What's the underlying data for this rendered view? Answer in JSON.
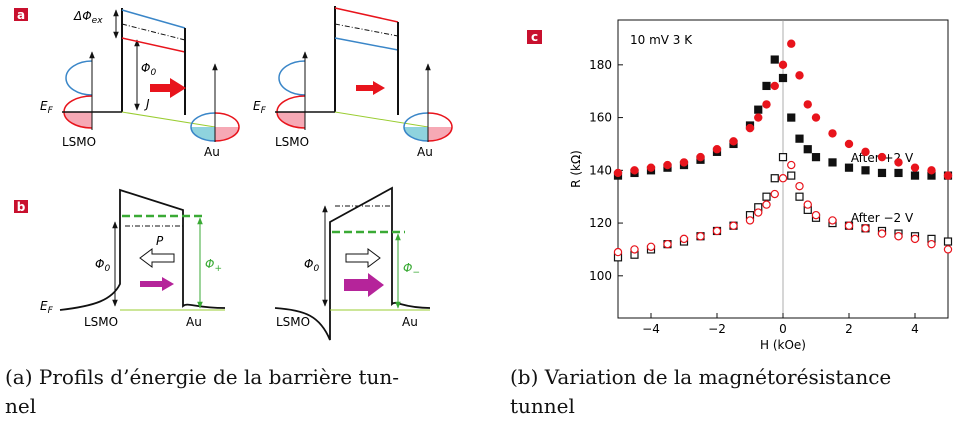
{
  "panel_a": {
    "label": "a",
    "delta_phi": {
      "main": "ΔΦ",
      "sub": "ex"
    },
    "phi0": {
      "main": "Φ",
      "sub": "0"
    },
    "current": "J",
    "fermi": {
      "main": "E",
      "sub": "F"
    },
    "left_electrode": "LSMO",
    "right_electrode": "Au"
  },
  "panel_b": {
    "label": "b",
    "polarization": "P",
    "phi0": {
      "main": "Φ",
      "sub": "0"
    },
    "phi_plus": {
      "main": "Φ",
      "sub": "+"
    },
    "phi_minus": {
      "main": "Φ",
      "sub": "−"
    },
    "fermi": {
      "main": "E",
      "sub": "F"
    },
    "left_electrode": "LSMO",
    "right_electrode": "Au"
  },
  "chart_data": {
    "type": "scatter",
    "panel_label": "c",
    "annotation": "10 mV 3 K",
    "labels": [
      "After +2 V",
      "After −2 V"
    ],
    "x_label": "H (kOe)",
    "y_label": "R (kΩ)",
    "xlim": [
      -5,
      5
    ],
    "ylim": [
      84,
      197
    ],
    "xticks": [
      {
        "value": -4,
        "label": "−4"
      },
      {
        "value": -2,
        "label": "−2"
      },
      0,
      2,
      4
    ],
    "yticks": [
      100,
      120,
      140,
      160,
      180
    ],
    "x": [
      -5,
      -4.5,
      -4,
      -3.5,
      -3,
      -2.5,
      -2,
      -1.5,
      -1,
      -0.75,
      -0.5,
      -0.25,
      0,
      0.25,
      0.5,
      0.75,
      1,
      1.5,
      2,
      2.5,
      3,
      3.5,
      4,
      4.5,
      5
    ],
    "series": [
      {
        "color": "#111111",
        "marker": "square",
        "filled": true,
        "values": [
          138,
          139,
          140,
          141,
          142,
          144,
          147,
          150,
          157,
          163,
          172,
          182,
          175,
          160,
          152,
          148,
          145,
          143,
          141,
          140,
          139,
          139,
          138,
          138,
          138
        ]
      },
      {
        "color": "#e8141c",
        "marker": "circle",
        "filled": true,
        "values": [
          139,
          140,
          141,
          142,
          143,
          145,
          148,
          151,
          156,
          160,
          165,
          172,
          180,
          188,
          176,
          165,
          160,
          154,
          150,
          147,
          145,
          143,
          141,
          140,
          138
        ]
      },
      {
        "color": "#111111",
        "marker": "square",
        "filled": false,
        "values": [
          107,
          108,
          110,
          112,
          113,
          115,
          117,
          119,
          123,
          126,
          130,
          137,
          145,
          138,
          130,
          125,
          122,
          120,
          119,
          118,
          117,
          116,
          115,
          114,
          113
        ]
      },
      {
        "color": "#e8141c",
        "marker": "circle",
        "filled": false,
        "values": [
          109,
          110,
          111,
          112,
          114,
          115,
          117,
          119,
          121,
          124,
          127,
          131,
          137,
          142,
          134,
          127,
          123,
          121,
          119,
          118,
          116,
          115,
          114,
          112,
          110
        ]
      }
    ]
  },
  "captions": [
    {
      "lines": [
        "(a) Profils d’énergie de la barrière tun-",
        "nel"
      ]
    },
    {
      "lines": [
        "(b) Variation de la magnétorésistance",
        "tunnel"
      ]
    }
  ]
}
